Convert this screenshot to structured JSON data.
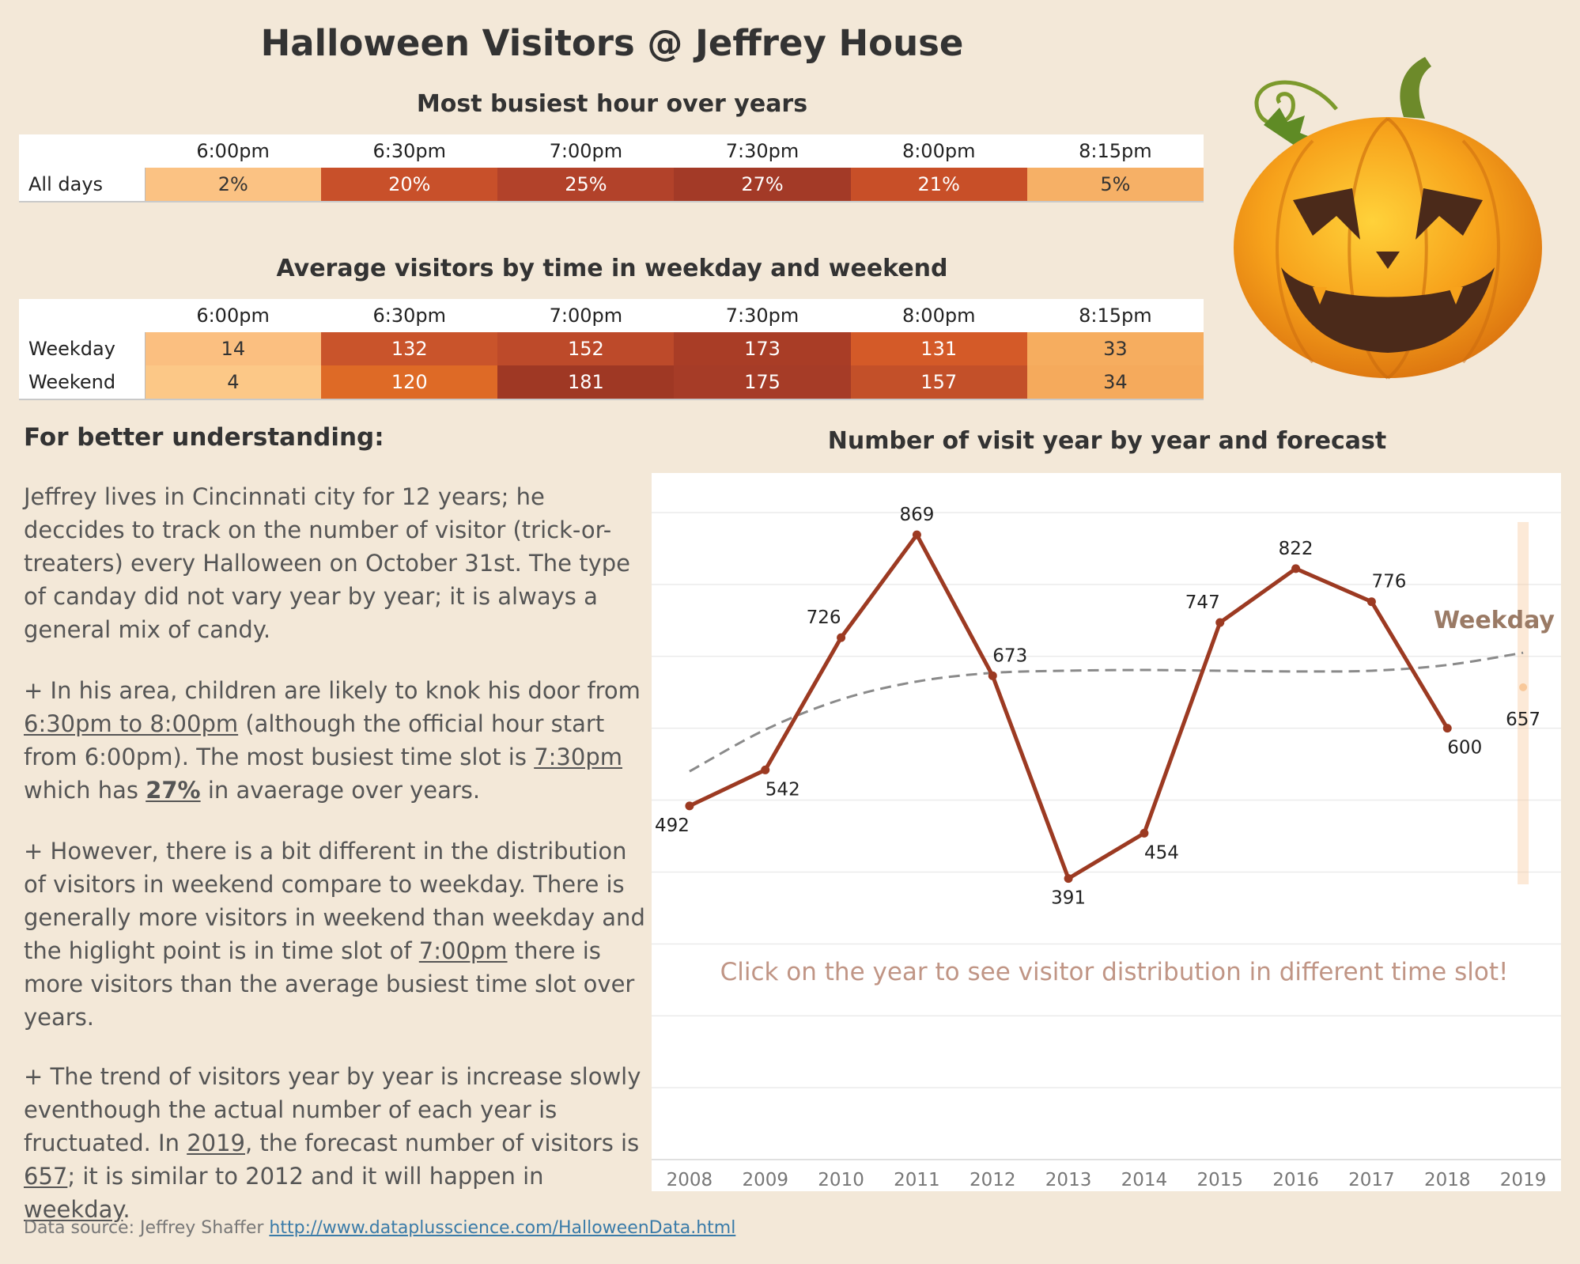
{
  "title": "Halloween Visitors @ Jeffrey House",
  "table1": {
    "title": "Most busiest hour over years",
    "columns": [
      "6:00pm",
      "6:30pm",
      "7:00pm",
      "7:30pm",
      "8:00pm",
      "8:15pm"
    ],
    "rows": [
      {
        "label": "All days",
        "cells": [
          "2%",
          "20%",
          "25%",
          "27%",
          "21%",
          "5%"
        ],
        "colors": [
          "#fbc283",
          "#c8502a",
          "#b2422a",
          "#a33a27",
          "#c84f28",
          "#f6b066"
        ]
      }
    ]
  },
  "table2": {
    "title": "Average visitors by time in weekday and weekend",
    "columns": [
      "6:00pm",
      "6:30pm",
      "7:00pm",
      "7:30pm",
      "8:00pm",
      "8:15pm"
    ],
    "rows": [
      {
        "label": "Weekday",
        "cells": [
          "14",
          "132",
          "152",
          "173",
          "131",
          "33"
        ],
        "colors": [
          "#fbbf80",
          "#c9542b",
          "#bd4a2a",
          "#a93d26",
          "#d45a28",
          "#f6ad5f"
        ]
      },
      {
        "label": "Weekend",
        "cells": [
          "4",
          "120",
          "181",
          "175",
          "157",
          "34"
        ],
        "colors": [
          "#fcc887",
          "#de6a26",
          "#9f3824",
          "#a63c27",
          "#c35029",
          "#f5aa5c"
        ]
      }
    ]
  },
  "understanding": {
    "heading": "For better understanding:",
    "p1": "Jeffrey lives in Cincinnati city for 12 years; he deccides to track on the number of visitor (trick-or-treaters) every Halloween on October 31st. The type of canday did not vary year by year; it is always a general mix of candy.",
    "p2": {
      "t1": "+ In his area, children are likely to knok his door from ",
      "u1": "6:30pm to 8:00pm",
      "t2": " (although the official hour start from 6:00pm).  The most busiest time slot is ",
      "u2": "7:30pm",
      "t3": " which has ",
      "u3": "27%",
      "t4": " in avaerage over years."
    },
    "p3": {
      "t1": "+ However, there is a bit different in the distribution of visitors in weekend compare to weekday. There is generally more visitors in weekend than weekday and the higlight point is in time slot of ",
      "u1": "7:00pm",
      "t2": " there is more visitors than the average busiest time slot over years."
    },
    "p4": {
      "t1": "+ The trend of visitors year by year is increase slowly eventhough the actual number of each year is fructuated. In ",
      "u1": "2019",
      "t2": ", the forecast number of visitors is ",
      "u2": "657",
      "t3": "; it is similar to 2012 and it will happen in ",
      "u3": "weekday",
      "t4": "."
    }
  },
  "source": {
    "label": "Data source: Jeffrey Shaffer ",
    "link": "http://www.dataplusscience.com/HalloweenData.html"
  },
  "colors": {
    "line": "#9c3a22",
    "trend": "#8a8a8a",
    "forecast": "#f8c89a",
    "note": "#c09585",
    "forecast_label": "#9a7a65"
  },
  "chart_data": {
    "type": "line",
    "title": "Number of visit year by year and forecast",
    "x": [
      "2008",
      "2009",
      "2010",
      "2011",
      "2012",
      "2013",
      "2014",
      "2015",
      "2016",
      "2017",
      "2018",
      "2019"
    ],
    "series": [
      {
        "values": [
          492,
          542,
          726,
          869,
          673,
          391,
          454,
          747,
          822,
          776,
          600,
          null
        ]
      }
    ],
    "trend": [
      540,
      598,
      640,
      665,
      677,
      680,
      681,
      680,
      679,
      680,
      688,
      705
    ],
    "forecast": {
      "year": "2019",
      "value": 657,
      "label": "Weekday"
    },
    "ylim": [
      0,
      900
    ],
    "grid": true,
    "note": "Click on the year to see visitor distribution in different time slot!"
  }
}
